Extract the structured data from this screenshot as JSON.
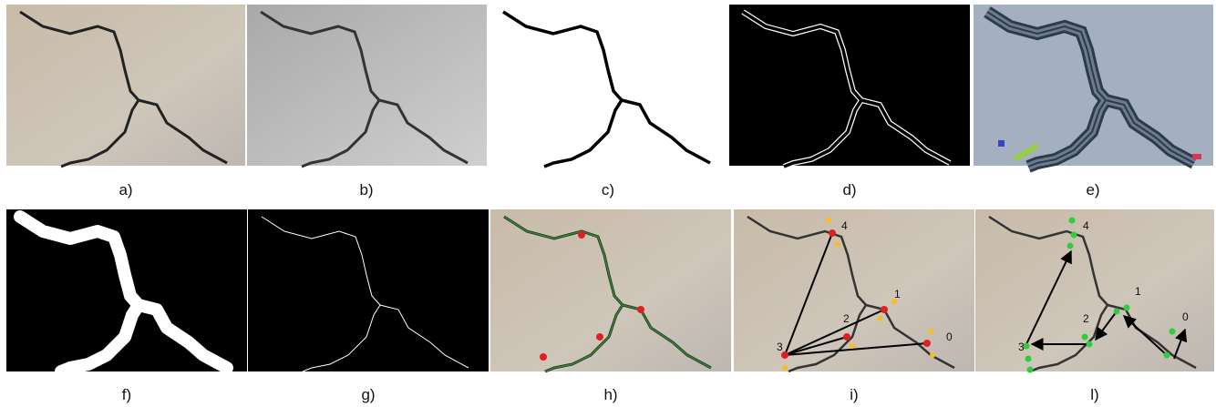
{
  "panels": [
    {
      "label": "a)"
    },
    {
      "label": "b)"
    },
    {
      "label": "c)"
    },
    {
      "label": "d)"
    },
    {
      "label": "e)"
    },
    {
      "label": "f)"
    },
    {
      "label": "g)"
    },
    {
      "label": "h)"
    },
    {
      "label": "i)",
      "nodes": [
        "0",
        "1",
        "2",
        "3",
        "4"
      ]
    },
    {
      "label": "l)",
      "nodes": [
        "0",
        "1",
        "2",
        "3",
        "4"
      ]
    }
  ]
}
